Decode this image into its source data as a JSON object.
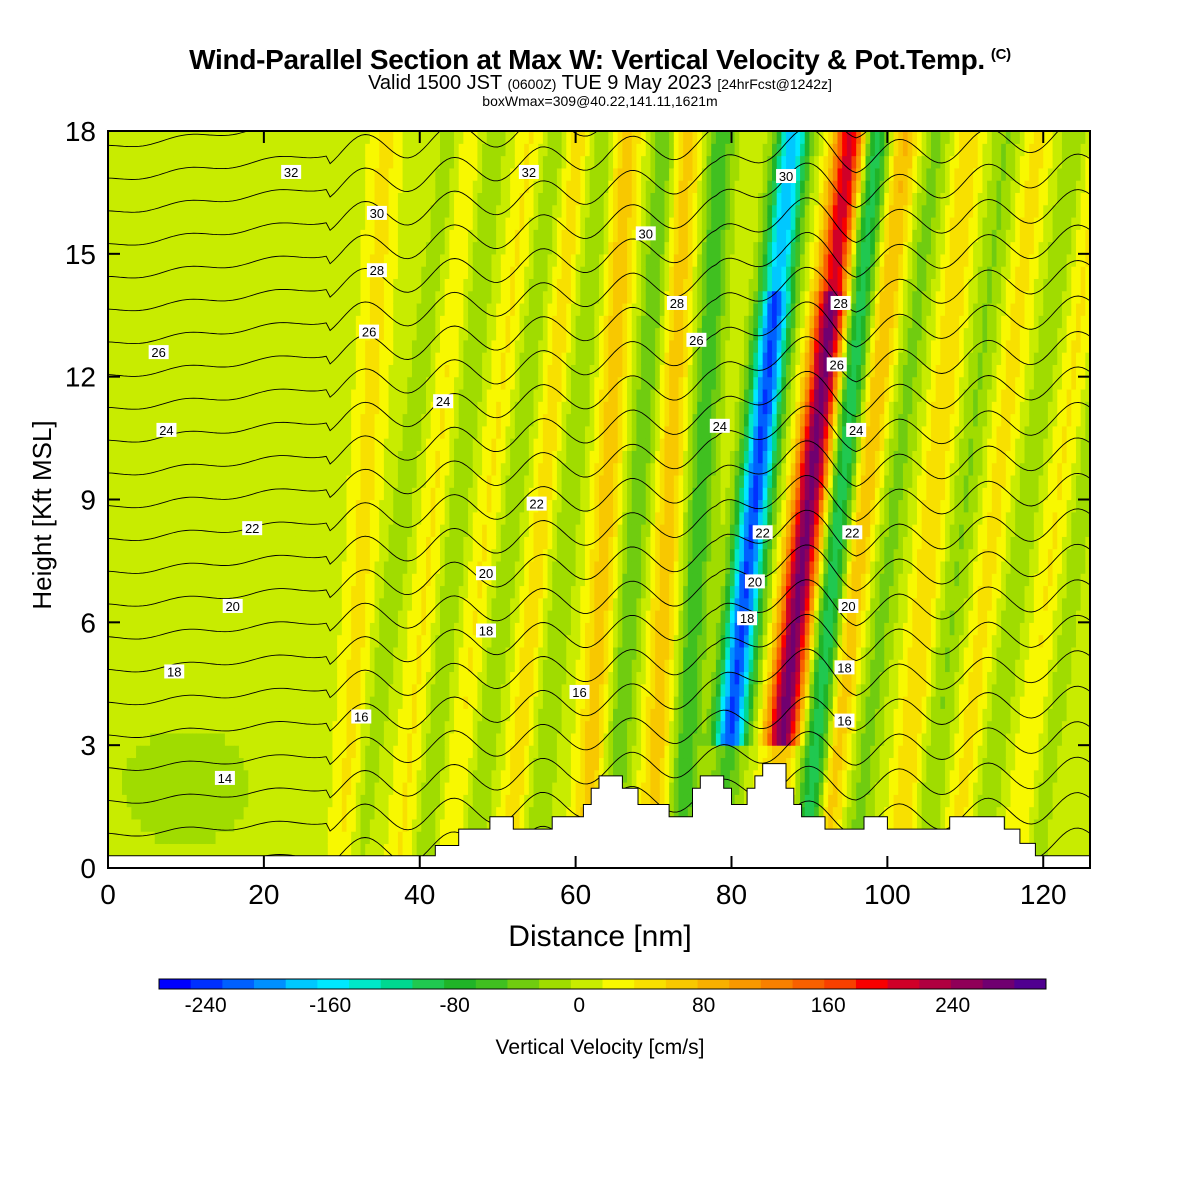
{
  "header": {
    "title": "Wind-Parallel Section at Max W: Vertical Velocity & Pot.Temp.",
    "title_mark": "(C)",
    "valid_prefix": "Valid 1500 JST",
    "valid_zulu": "(0600Z)",
    "valid_date": "TUE 9 May 2023",
    "forecast": "[24hrFcst@1242z]",
    "box_info": "boxWmax=309@40.22,141.11,1621m"
  },
  "chart_data": {
    "type": "heatmap",
    "xlabel": "Distance [nm]",
    "ylabel": "Height [Kft MSL]",
    "xlim": [
      0,
      126
    ],
    "ylim": [
      0,
      18
    ],
    "x_ticks": [
      0,
      20,
      40,
      60,
      80,
      100,
      120
    ],
    "y_ticks": [
      0,
      3,
      6,
      9,
      12,
      15,
      18
    ],
    "colorbar": {
      "label": "Vertical Velocity [cm/s]",
      "tick_values": [
        -240,
        -160,
        -80,
        0,
        80,
        160,
        240
      ],
      "tick_labels": [
        "-240",
        "-160",
        "-80",
        "0",
        "80",
        "160",
        "240"
      ],
      "min": -270,
      "max": 300,
      "colors": [
        "#0000ff",
        "#0030ff",
        "#0060ff",
        "#0090ff",
        "#00c8ff",
        "#00e8ff",
        "#00e8c8",
        "#00d890",
        "#20c850",
        "#20b428",
        "#40c020",
        "#70cc10",
        "#a0dc00",
        "#c8ec00",
        "#f8f800",
        "#f8e000",
        "#f8c800",
        "#f8b000",
        "#f89800",
        "#f88000",
        "#f86000",
        "#f84000",
        "#f80000",
        "#d00028",
        "#b00040",
        "#900058",
        "#700070",
        "#500090"
      ]
    },
    "theta_labels": [
      {
        "text": "32",
        "x": 23.5,
        "y": 17.0
      },
      {
        "text": "32",
        "x": 54,
        "y": 17.0
      },
      {
        "text": "30",
        "x": 87,
        "y": 16.9
      },
      {
        "text": "30",
        "x": 34.5,
        "y": 16.0
      },
      {
        "text": "30",
        "x": 69,
        "y": 15.5
      },
      {
        "text": "28",
        "x": 34.5,
        "y": 14.6
      },
      {
        "text": "28",
        "x": 73,
        "y": 13.8
      },
      {
        "text": "28",
        "x": 94,
        "y": 13.8
      },
      {
        "text": "26",
        "x": 6.5,
        "y": 12.6
      },
      {
        "text": "26",
        "x": 33.5,
        "y": 13.1
      },
      {
        "text": "26",
        "x": 75.5,
        "y": 12.9
      },
      {
        "text": "26",
        "x": 93.5,
        "y": 12.3
      },
      {
        "text": "24",
        "x": 7.5,
        "y": 10.7
      },
      {
        "text": "24",
        "x": 43,
        "y": 11.4
      },
      {
        "text": "24",
        "x": 78.5,
        "y": 10.8
      },
      {
        "text": "24",
        "x": 96,
        "y": 10.7
      },
      {
        "text": "22",
        "x": 18.5,
        "y": 8.3
      },
      {
        "text": "22",
        "x": 55,
        "y": 8.9
      },
      {
        "text": "22",
        "x": 84,
        "y": 8.2
      },
      {
        "text": "22",
        "x": 95.5,
        "y": 8.2
      },
      {
        "text": "20",
        "x": 16,
        "y": 6.4
      },
      {
        "text": "20",
        "x": 48.5,
        "y": 7.2
      },
      {
        "text": "20",
        "x": 83,
        "y": 7.0
      },
      {
        "text": "20",
        "x": 95,
        "y": 6.4
      },
      {
        "text": "18",
        "x": 8.5,
        "y": 4.8
      },
      {
        "text": "18",
        "x": 48.5,
        "y": 5.8
      },
      {
        "text": "18",
        "x": 82,
        "y": 6.1
      },
      {
        "text": "18",
        "x": 94.5,
        "y": 4.9
      },
      {
        "text": "16",
        "x": 32.5,
        "y": 3.7
      },
      {
        "text": "16",
        "x": 60.5,
        "y": 4.3
      },
      {
        "text": "16",
        "x": 94.5,
        "y": 3.6
      },
      {
        "text": "14",
        "x": 15,
        "y": 2.2
      }
    ],
    "terrain_top": [
      [
        0,
        0.3
      ],
      [
        42,
        0.3
      ],
      [
        42,
        0.55
      ],
      [
        45,
        0.55
      ],
      [
        45,
        0.95
      ],
      [
        49,
        0.95
      ],
      [
        49,
        1.25
      ],
      [
        52,
        1.25
      ],
      [
        52,
        0.95
      ],
      [
        57,
        0.95
      ],
      [
        57,
        1.25
      ],
      [
        61,
        1.25
      ],
      [
        61,
        1.55
      ],
      [
        62,
        1.55
      ],
      [
        62,
        1.95
      ],
      [
        63,
        1.95
      ],
      [
        63,
        2.25
      ],
      [
        66,
        2.25
      ],
      [
        66,
        1.95
      ],
      [
        68,
        1.95
      ],
      [
        68,
        1.55
      ],
      [
        72,
        1.55
      ],
      [
        72,
        1.25
      ],
      [
        75,
        1.25
      ],
      [
        75,
        1.95
      ],
      [
        76,
        1.95
      ],
      [
        76,
        2.25
      ],
      [
        79,
        2.25
      ],
      [
        79,
        1.95
      ],
      [
        80,
        1.95
      ],
      [
        80,
        1.55
      ],
      [
        82,
        1.55
      ],
      [
        82,
        1.95
      ],
      [
        83,
        1.95
      ],
      [
        83,
        2.25
      ],
      [
        84,
        2.25
      ],
      [
        84,
        2.55
      ],
      [
        87,
        2.55
      ],
      [
        87,
        1.95
      ],
      [
        88,
        1.95
      ],
      [
        88,
        1.55
      ],
      [
        89,
        1.55
      ],
      [
        89,
        1.25
      ],
      [
        92,
        1.25
      ],
      [
        92,
        0.95
      ],
      [
        97,
        0.95
      ],
      [
        97,
        1.25
      ],
      [
        100,
        1.25
      ],
      [
        100,
        0.95
      ],
      [
        108,
        0.95
      ],
      [
        108,
        1.25
      ],
      [
        115,
        1.25
      ],
      [
        115,
        0.95
      ],
      [
        117,
        0.95
      ],
      [
        117,
        0.6
      ],
      [
        119,
        0.6
      ],
      [
        119,
        0.3
      ],
      [
        126,
        0.3
      ]
    ]
  }
}
